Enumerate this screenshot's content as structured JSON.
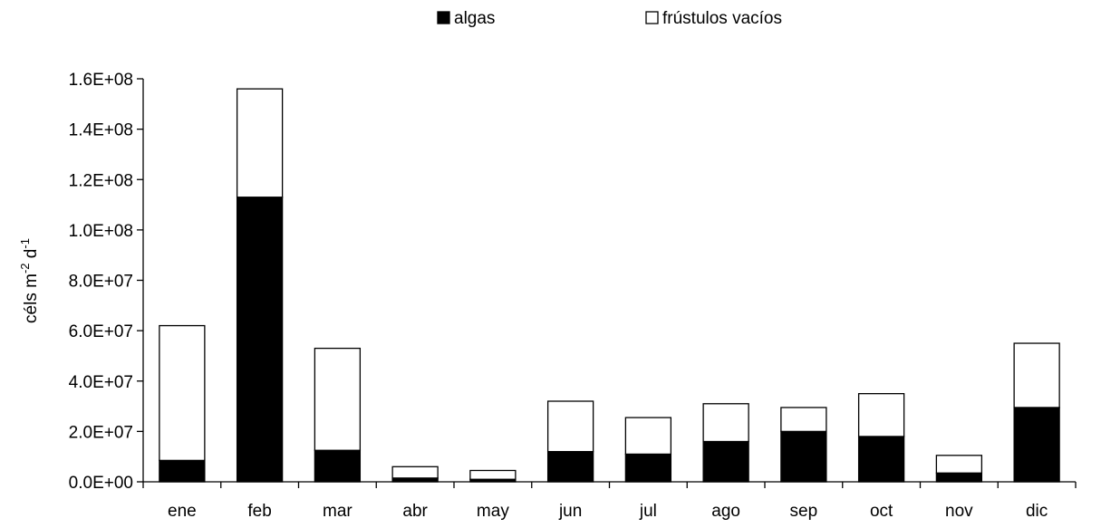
{
  "chart_data": {
    "type": "bar",
    "stacked": true,
    "categories": [
      "ene",
      "feb",
      "mar",
      "abr",
      "may",
      "jun",
      "jul",
      "ago",
      "sep",
      "oct",
      "nov",
      "dic"
    ],
    "series": [
      {
        "name": "algas",
        "color": "#000000",
        "values": [
          8500000.0,
          113000000.0,
          12500000.0,
          1500000.0,
          1000000.0,
          12000000.0,
          11000000.0,
          16000000.0,
          20000000.0,
          18000000.0,
          3500000.0,
          29500000.0
        ]
      },
      {
        "name": "frústulos vacíos",
        "color": "#ffffff",
        "values": [
          53500000.0,
          43000000.0,
          40500000.0,
          4500000.0,
          3500000.0,
          20000000.0,
          14500000.0,
          15000000.0,
          9500000.0,
          17000000.0,
          7000000.0,
          25500000.0
        ]
      }
    ],
    "ylim": [
      0,
      160000000.0
    ],
    "yticks": [
      "0.0E+00",
      "2.0E+07",
      "4.0E+07",
      "6.0E+07",
      "8.0E+07",
      "1.0E+08",
      "1.2E+08",
      "1.4E+08",
      "1.6E+08"
    ],
    "ylabel_text": "céls m",
    "ylabel_sup1": "-2",
    "ylabel_mid": " d",
    "ylabel_sup2": "-1",
    "legend_position": "top-center",
    "grid": false
  }
}
